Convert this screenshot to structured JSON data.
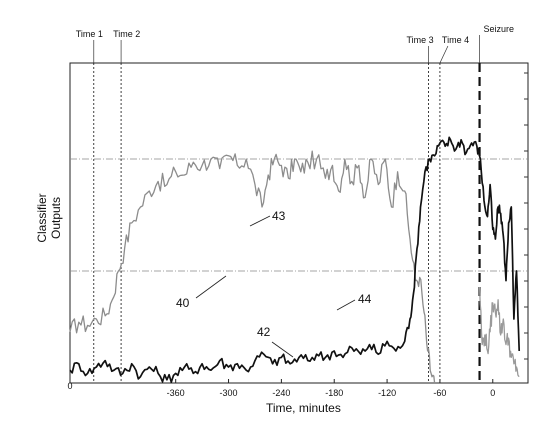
{
  "chart_data": {
    "type": "line",
    "title": "",
    "xlabel": "Time, minutes",
    "ylabel": "Classifier Outputs",
    "xlim": [
      -480,
      40
    ],
    "x_ticks": [
      -360,
      -300,
      -240,
      -180,
      -120,
      -60,
      0
    ],
    "origin_label": "0",
    "grid": false,
    "events": [
      {
        "label": "Time 1",
        "x": -453,
        "style": "dotted"
      },
      {
        "label": "Time 2",
        "x": -422,
        "style": "dotted"
      },
      {
        "label": "Time 3",
        "x": -73,
        "style": "dotted"
      },
      {
        "label": "Time 4",
        "x": -60,
        "style": "dotted"
      },
      {
        "label": "Seizure",
        "x": -15,
        "style": "dashed"
      }
    ],
    "thresholds": [
      {
        "label": "43",
        "y": 0.7
      },
      {
        "label": "44",
        "y": 0.35
      }
    ],
    "series": [
      {
        "label": "40",
        "color": "#8c8c8c",
        "points": [
          [
            -480,
            0.16
          ],
          [
            -470,
            0.19
          ],
          [
            -460,
            0.18
          ],
          [
            -450,
            0.2
          ],
          [
            -440,
            0.21
          ],
          [
            -432,
            0.26
          ],
          [
            -425,
            0.35
          ],
          [
            -418,
            0.42
          ],
          [
            -410,
            0.5
          ],
          [
            -400,
            0.55
          ],
          [
            -390,
            0.6
          ],
          [
            -380,
            0.63
          ],
          [
            -370,
            0.62
          ],
          [
            -360,
            0.66
          ],
          [
            -350,
            0.65
          ],
          [
            -340,
            0.69
          ],
          [
            -330,
            0.68
          ],
          [
            -320,
            0.7
          ],
          [
            -310,
            0.67
          ],
          [
            -300,
            0.71
          ],
          [
            -290,
            0.68
          ],
          [
            -280,
            0.7
          ],
          [
            -270,
            0.62
          ],
          [
            -262,
            0.55
          ],
          [
            -255,
            0.65
          ],
          [
            -248,
            0.7
          ],
          [
            -240,
            0.68
          ],
          [
            -232,
            0.64
          ],
          [
            -225,
            0.7
          ],
          [
            -218,
            0.66
          ],
          [
            -210,
            0.69
          ],
          [
            -200,
            0.7
          ],
          [
            -190,
            0.64
          ],
          [
            -182,
            0.68
          ],
          [
            -175,
            0.6
          ],
          [
            -168,
            0.7
          ],
          [
            -160,
            0.63
          ],
          [
            -152,
            0.68
          ],
          [
            -145,
            0.58
          ],
          [
            -138,
            0.7
          ],
          [
            -130,
            0.62
          ],
          [
            -122,
            0.7
          ],
          [
            -115,
            0.55
          ],
          [
            -108,
            0.66
          ],
          [
            -100,
            0.6
          ],
          [
            -94,
            0.45
          ],
          [
            -88,
            0.32
          ],
          [
            -83,
            0.33
          ],
          [
            -78,
            0.22
          ],
          [
            -74,
            0.1
          ],
          [
            -70,
            0.03
          ],
          [
            -66,
            0.0
          ]
        ]
      },
      {
        "label": "42",
        "color": "#111111",
        "points": [
          [
            -480,
            0.04
          ],
          [
            -470,
            0.06
          ],
          [
            -460,
            0.03
          ],
          [
            -450,
            0.05
          ],
          [
            -440,
            0.07
          ],
          [
            -430,
            0.04
          ],
          [
            -420,
            0.03
          ],
          [
            -410,
            0.06
          ],
          [
            -400,
            0.02
          ],
          [
            -390,
            0.05
          ],
          [
            -380,
            0.03
          ],
          [
            -370,
            0.01
          ],
          [
            -360,
            0.03
          ],
          [
            -350,
            0.05
          ],
          [
            -340,
            0.03
          ],
          [
            -330,
            0.06
          ],
          [
            -320,
            0.04
          ],
          [
            -310,
            0.07
          ],
          [
            -300,
            0.05
          ],
          [
            -290,
            0.06
          ],
          [
            -280,
            0.04
          ],
          [
            -270,
            0.07
          ],
          [
            -260,
            0.09
          ],
          [
            -250,
            0.06
          ],
          [
            -240,
            0.08
          ],
          [
            -230,
            0.06
          ],
          [
            -220,
            0.08
          ],
          [
            -210,
            0.07
          ],
          [
            -200,
            0.09
          ],
          [
            -190,
            0.08
          ],
          [
            -180,
            0.1
          ],
          [
            -170,
            0.08
          ],
          [
            -160,
            0.11
          ],
          [
            -150,
            0.09
          ],
          [
            -140,
            0.12
          ],
          [
            -130,
            0.09
          ],
          [
            -120,
            0.13
          ],
          [
            -110,
            0.1
          ],
          [
            -100,
            0.13
          ],
          [
            -94,
            0.2
          ],
          [
            -90,
            0.28
          ],
          [
            -86,
            0.42
          ],
          [
            -82,
            0.55
          ],
          [
            -77,
            0.66
          ],
          [
            -72,
            0.7
          ],
          [
            -66,
            0.71
          ],
          [
            -60,
            0.75
          ],
          [
            -54,
            0.74
          ],
          [
            -48,
            0.76
          ],
          [
            -42,
            0.73
          ],
          [
            -36,
            0.76
          ],
          [
            -30,
            0.72
          ],
          [
            -24,
            0.75
          ],
          [
            -18,
            0.74
          ],
          [
            -14,
            0.7
          ],
          [
            -10,
            0.57
          ],
          [
            -6,
            0.52
          ],
          [
            -3,
            0.62
          ],
          [
            0,
            0.48
          ],
          [
            3,
            0.45
          ],
          [
            6,
            0.55
          ],
          [
            9,
            0.53
          ],
          [
            12,
            0.46
          ],
          [
            15,
            0.32
          ],
          [
            18,
            0.5
          ],
          [
            21,
            0.55
          ],
          [
            24,
            0.2
          ],
          [
            27,
            0.35
          ],
          [
            30,
            0.1
          ]
        ]
      },
      {
        "label": "",
        "color": "#9a9a9a",
        "points": [
          [
            -15,
            0.3
          ],
          [
            -12,
            0.12
          ],
          [
            -9,
            0.15
          ],
          [
            -6,
            0.1
          ],
          [
            -3,
            0.16
          ],
          [
            0,
            0.25
          ],
          [
            3,
            0.22
          ],
          [
            6,
            0.26
          ],
          [
            9,
            0.15
          ],
          [
            12,
            0.2
          ],
          [
            15,
            0.12
          ],
          [
            18,
            0.14
          ],
          [
            21,
            0.08
          ],
          [
            24,
            0.06
          ],
          [
            27,
            0.05
          ],
          [
            30,
            0.02
          ]
        ]
      }
    ]
  }
}
